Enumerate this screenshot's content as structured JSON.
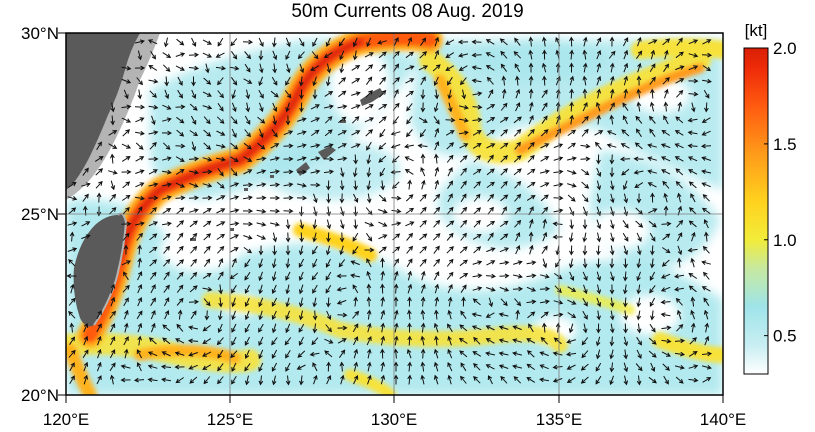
{
  "title": "50m Currents  08 Aug. 2019",
  "unit_label": "[kt]",
  "lat_labels": [
    "20°N",
    "25°N",
    "30°N"
  ],
  "lon_labels": [
    "120°E",
    "125°E",
    "130°E",
    "135°E",
    "140°E"
  ],
  "colorbar": {
    "ticks": [
      "0.5",
      "1.0",
      "1.5",
      "2.0"
    ],
    "tick_values": [
      0.5,
      1.0,
      1.5,
      2.0
    ],
    "range": [
      0.3,
      2.0
    ],
    "stops": [
      {
        "v": 0.3,
        "color": "#ffffff"
      },
      {
        "v": 0.45,
        "color": "#c8eef2"
      },
      {
        "v": 0.65,
        "color": "#9fe4ea"
      },
      {
        "v": 0.85,
        "color": "#c6e9a0"
      },
      {
        "v": 1.0,
        "color": "#f2ec3a"
      },
      {
        "v": 1.2,
        "color": "#ffd21e"
      },
      {
        "v": 1.45,
        "color": "#ff9a1a"
      },
      {
        "v": 1.7,
        "color": "#ff5a10"
      },
      {
        "v": 1.9,
        "color": "#ee2a08"
      },
      {
        "v": 2.0,
        "color": "#d81f06"
      }
    ]
  },
  "map_extent": {
    "lon": [
      120,
      140
    ],
    "lat": [
      20,
      30
    ]
  },
  "land_color": "#5a5a5a",
  "shelf_color": "#b4b4b4"
}
